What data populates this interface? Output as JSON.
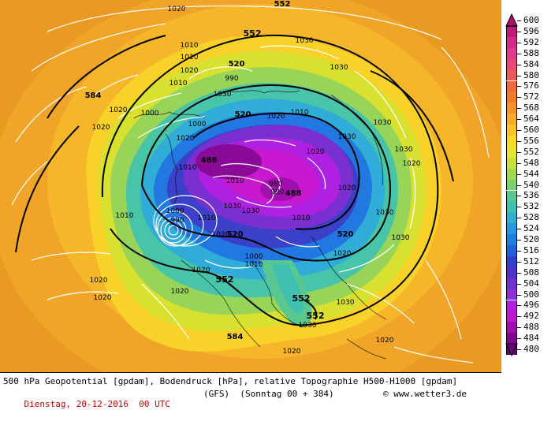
{
  "legend": {
    "levels": [
      "600",
      "596",
      "592",
      "588",
      "584",
      "580",
      "576",
      "572",
      "568",
      "564",
      "560",
      "556",
      "552",
      "548",
      "544",
      "540",
      "536",
      "532",
      "528",
      "524",
      "520",
      "516",
      "512",
      "508",
      "504",
      "500",
      "496",
      "492",
      "488",
      "484",
      "480"
    ],
    "colors": [
      "#a8106a",
      "#c01a78",
      "#d42a84",
      "#e03a8e",
      "#e84a78",
      "#ee5a5a",
      "#f06a3a",
      "#f07c28",
      "#f4922a",
      "#f6aa2a",
      "#f8c22a",
      "#f8d828",
      "#e8e230",
      "#c8e040",
      "#a0d850",
      "#78d070",
      "#58c890",
      "#40c0b0",
      "#30b0d0",
      "#2898e0",
      "#2080e0",
      "#2060d8",
      "#3040c8",
      "#5030c8",
      "#7030d0",
      "#9030d8",
      "#b020e0",
      "#c018d0",
      "#a010b0",
      "#800890",
      "#600878"
    ]
  },
  "map": {
    "geopotential_labels": [
      "552",
      "552",
      "584",
      "520",
      "520",
      "488",
      "488",
      "520",
      "520",
      "552",
      "552",
      "552",
      "584"
    ],
    "pressure_labels": [
      "1020",
      "1020",
      "1030",
      "1010",
      "990",
      "1000",
      "1010",
      "1010",
      "1000",
      "1020",
      "1030",
      "1010",
      "1030",
      "1020",
      "1020",
      "1030",
      "1020",
      "1010",
      "1010",
      "1020",
      "1030",
      "1010",
      "1030",
      "1010",
      "1000",
      "1030",
      "990",
      "980",
      "990",
      "1010",
      "1020",
      "1030",
      "1020",
      "1000",
      "1030",
      "1020",
      "1020",
      "1020",
      "1030",
      "1020",
      "1020",
      "1020",
      "1010",
      "1020",
      "1020",
      "1030",
      "1030"
    ]
  },
  "footer": {
    "line1": "500 hPa Geopotential [gpdam], Bodendruck [hPa], relative Topographie H500-H1000 [gpdam]",
    "date": "Dienstag, 20-12-2016  00 UTC",
    "model": "(GFS)  (Sonntag 00 + 384)",
    "copyright": "© www.wetter3.de"
  }
}
